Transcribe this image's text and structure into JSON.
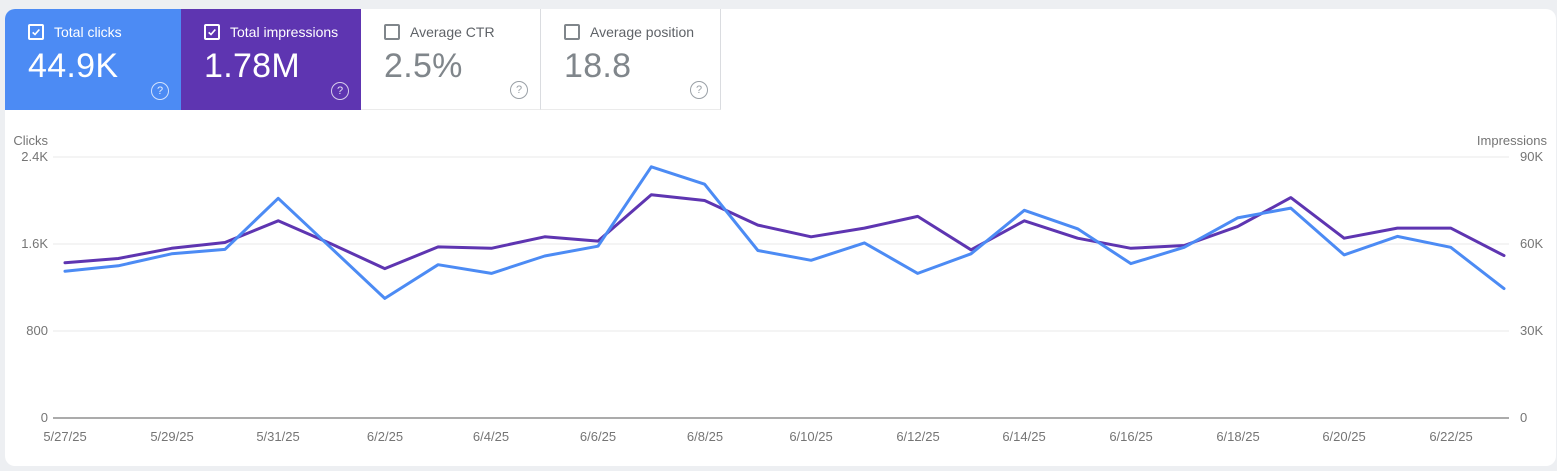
{
  "cards": [
    {
      "label": "Total clicks",
      "value": "44.9K",
      "checked": true,
      "color": "#4c8bf4"
    },
    {
      "label": "Total impressions",
      "value": "1.78M",
      "checked": true,
      "color": "#5e35b1"
    },
    {
      "label": "Average CTR",
      "value": "2.5%",
      "checked": false,
      "color": "#ffffff"
    },
    {
      "label": "Average position",
      "value": "18.8",
      "checked": false,
      "color": "#ffffff"
    }
  ],
  "icons": {
    "help_glyph": "?"
  },
  "chart_data": {
    "type": "line",
    "x": [
      "5/27/25",
      "5/28/25",
      "5/29/25",
      "5/30/25",
      "5/31/25",
      "6/1/25",
      "6/2/25",
      "6/3/25",
      "6/4/25",
      "6/5/25",
      "6/6/25",
      "6/7/25",
      "6/8/25",
      "6/9/25",
      "6/10/25",
      "6/11/25",
      "6/12/25",
      "6/13/25",
      "6/14/25",
      "6/15/25",
      "6/16/25",
      "6/17/25",
      "6/18/25",
      "6/19/25",
      "6/20/25",
      "6/21/25",
      "6/22/25",
      "6/23/25"
    ],
    "series": [
      {
        "name": "Total clicks",
        "axis": "left",
        "color": "#4c8bf4",
        "values": [
          1350,
          1400,
          1510,
          1550,
          2020,
          1560,
          1100,
          1410,
          1330,
          1490,
          1580,
          2310,
          2150,
          1540,
          1450,
          1610,
          1330,
          1510,
          1910,
          1740,
          1420,
          1570,
          1840,
          1930,
          1500,
          1670,
          1570,
          1190
        ]
      },
      {
        "name": "Total impressions",
        "axis": "right",
        "color": "#5e35b1",
        "values": [
          53500,
          55000,
          58500,
          60500,
          68000,
          60000,
          51500,
          59000,
          58500,
          62500,
          61000,
          77000,
          75000,
          66500,
          62500,
          65500,
          69500,
          58000,
          68000,
          62000,
          58500,
          59500,
          66000,
          76000,
          62000,
          65500,
          65500,
          56000
        ]
      }
    ],
    "left_axis": {
      "title": "Clicks",
      "ticks": [
        "2.4K",
        "1.6K",
        "800",
        "0"
      ],
      "ylim": [
        0,
        2400
      ]
    },
    "right_axis": {
      "title": "Impressions",
      "ticks": [
        "90K",
        "60K",
        "30K",
        "0"
      ],
      "ylim": [
        0,
        90000
      ]
    },
    "x_tick_labels": [
      "5/27/25",
      "5/29/25",
      "5/31/25",
      "6/2/25",
      "6/4/25",
      "6/6/25",
      "6/8/25",
      "6/10/25",
      "6/12/25",
      "6/14/25",
      "6/16/25",
      "6/18/25",
      "6/20/25",
      "6/22/25"
    ],
    "grid": "horizontal",
    "legend_position": "none"
  }
}
